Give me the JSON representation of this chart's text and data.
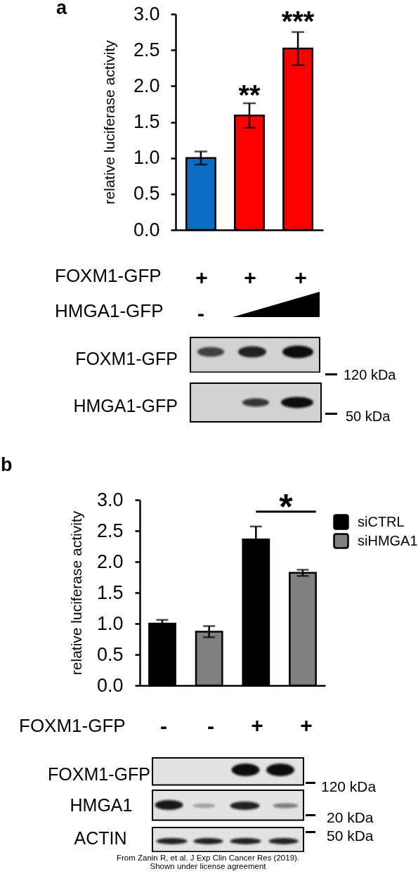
{
  "chart_data": [
    {
      "type": "bar",
      "title": "a",
      "ylabel": "relative luciferase activity",
      "categories": [
        null,
        null,
        null
      ],
      "values": [
        1.0,
        1.59,
        2.52
      ],
      "colors": [
        "#0b6cc4",
        "#ff0000",
        "#ff0000"
      ],
      "errors": [
        0.09,
        0.17,
        0.23
      ],
      "ylim": [
        0,
        3
      ],
      "yticks": [
        {
          "value": 0,
          "label": "0.0"
        },
        0.5,
        {
          "value": 1,
          "label": "1.0"
        },
        1.5,
        {
          "value": 2,
          "label": "2.0"
        },
        2.5,
        {
          "value": 3,
          "label": "3.0"
        }
      ],
      "annotations": [
        "**",
        "***",
        "FOXM1-GFP",
        "+",
        "+",
        "+",
        "HMGA1-GFP",
        "-",
        "FOXM1-GFP",
        "HMGA1-GFP",
        "120 kDa",
        "50 kDa"
      ]
    },
    {
      "type": "bar",
      "title": "b",
      "ylabel": "relative luciferase activity",
      "categories": [
        null,
        null,
        null,
        null
      ],
      "series": [
        {
          "name": "siCTRL",
          "color": "#000000",
          "values": [
            1.0,
            null,
            2.36,
            null
          ],
          "errors": [
            0.06,
            null,
            0.21,
            null
          ]
        },
        {
          "name": "siHMGA1",
          "color": "#808080",
          "values": [
            null,
            0.87,
            null,
            1.82
          ],
          "errors": [
            null,
            0.09,
            null,
            0.05
          ]
        }
      ],
      "ylim": [
        0,
        3
      ],
      "yticks": [
        {
          "value": 0,
          "label": "0.0"
        },
        0.5,
        {
          "value": 1,
          "label": "1.0"
        },
        1.5,
        {
          "value": 2,
          "label": "2.0"
        },
        2.5,
        {
          "value": 3,
          "label": "3.0"
        }
      ],
      "legend": "top right",
      "annotations": [
        "*",
        "FOXM1-GFP",
        "-",
        "-",
        "+",
        "+",
        "FOXM1-GFP",
        "HMGA1",
        "ACTIN",
        "120 kDa",
        "20 kDa",
        "50 kDa",
        "From Zanin R, et al. J Exp Clin Cancer Res (2019).",
        "Shown under license agreement"
      ]
    }
  ]
}
